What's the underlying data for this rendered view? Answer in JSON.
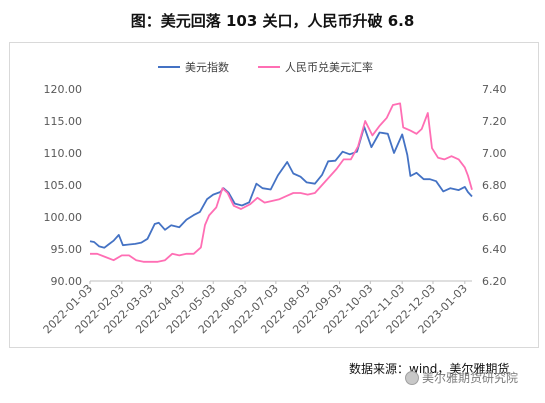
{
  "title": "图：美元回落 103 关口，人民币升破 6.8",
  "source": "数据来源：wind，美尔雅期货",
  "watermark": "美尔雅期货研究院",
  "chart_data": {
    "type": "line",
    "title": "图：美元回落 103 关口，人民币升破 6.8",
    "legend_position": "top-center",
    "grid": false,
    "x_ticks": [
      "2022-01-03",
      "2022-02-03",
      "2022-03-03",
      "2022-04-03",
      "2022-05-03",
      "2022-06-03",
      "2022-07-03",
      "2022-08-03",
      "2022-09-03",
      "2022-10-03",
      "2022-11-03",
      "2022-12-03",
      "2023-01-03"
    ],
    "x_range": [
      "2022-01-03",
      "2023-01-10"
    ],
    "y_left": {
      "ticks": [
        "90.00",
        "95.00",
        "100.00",
        "105.00",
        "110.00",
        "115.00",
        "120.00"
      ],
      "range": [
        90,
        120
      ]
    },
    "y_right": {
      "ticks": [
        "6.20",
        "6.40",
        "6.60",
        "6.80",
        "7.00",
        "7.20",
        "7.40"
      ],
      "range": [
        6.2,
        7.4
      ]
    },
    "series": [
      {
        "name": "美元指数",
        "axis": "left",
        "color": "#4472c4",
        "points": [
          [
            "2022-01-03",
            96.2
          ],
          [
            "2022-01-07",
            96.1
          ],
          [
            "2022-01-12",
            95.4
          ],
          [
            "2022-01-17",
            95.2
          ],
          [
            "2022-01-21",
            95.7
          ],
          [
            "2022-01-26",
            96.3
          ],
          [
            "2022-01-31",
            97.2
          ],
          [
            "2022-02-04",
            95.6
          ],
          [
            "2022-02-10",
            95.7
          ],
          [
            "2022-02-16",
            95.8
          ],
          [
            "2022-02-22",
            96.0
          ],
          [
            "2022-02-28",
            96.6
          ],
          [
            "2022-03-07",
            98.9
          ],
          [
            "2022-03-11",
            99.1
          ],
          [
            "2022-03-17",
            98.0
          ],
          [
            "2022-03-23",
            98.7
          ],
          [
            "2022-03-31",
            98.4
          ],
          [
            "2022-04-07",
            99.6
          ],
          [
            "2022-04-14",
            100.3
          ],
          [
            "2022-04-20",
            100.8
          ],
          [
            "2022-04-27",
            102.8
          ],
          [
            "2022-05-03",
            103.5
          ],
          [
            "2022-05-10",
            103.9
          ],
          [
            "2022-05-13",
            104.5
          ],
          [
            "2022-05-18",
            103.8
          ],
          [
            "2022-05-24",
            102.1
          ],
          [
            "2022-05-31",
            101.8
          ],
          [
            "2022-06-07",
            102.3
          ],
          [
            "2022-06-14",
            105.2
          ],
          [
            "2022-06-20",
            104.5
          ],
          [
            "2022-06-28",
            104.3
          ],
          [
            "2022-07-05",
            106.5
          ],
          [
            "2022-07-14",
            108.6
          ],
          [
            "2022-07-20",
            106.8
          ],
          [
            "2022-07-27",
            106.3
          ],
          [
            "2022-08-02",
            105.4
          ],
          [
            "2022-08-10",
            105.2
          ],
          [
            "2022-08-17",
            106.6
          ],
          [
            "2022-08-23",
            108.7
          ],
          [
            "2022-08-30",
            108.8
          ],
          [
            "2022-09-06",
            110.2
          ],
          [
            "2022-09-13",
            109.8
          ],
          [
            "2022-09-20",
            110.2
          ],
          [
            "2022-09-27",
            114.1
          ],
          [
            "2022-10-04",
            110.9
          ],
          [
            "2022-10-12",
            113.2
          ],
          [
            "2022-10-20",
            113.0
          ],
          [
            "2022-10-26",
            110.0
          ],
          [
            "2022-11-03",
            112.9
          ],
          [
            "2022-11-08",
            109.7
          ],
          [
            "2022-11-11",
            106.4
          ],
          [
            "2022-11-17",
            106.9
          ],
          [
            "2022-11-24",
            105.9
          ],
          [
            "2022-11-30",
            105.9
          ],
          [
            "2022-12-06",
            105.6
          ],
          [
            "2022-12-13",
            104.0
          ],
          [
            "2022-12-20",
            104.5
          ],
          [
            "2022-12-28",
            104.2
          ],
          [
            "2023-01-03",
            104.7
          ],
          [
            "2023-01-06",
            103.9
          ],
          [
            "2023-01-10",
            103.2
          ]
        ]
      },
      {
        "name": "人民币兑美元汇率",
        "axis": "right",
        "color": "#ff6eb4",
        "points": [
          [
            "2022-01-03",
            6.37
          ],
          [
            "2022-01-10",
            6.37
          ],
          [
            "2022-01-18",
            6.35
          ],
          [
            "2022-01-26",
            6.33
          ],
          [
            "2022-02-03",
            6.36
          ],
          [
            "2022-02-10",
            6.36
          ],
          [
            "2022-02-17",
            6.33
          ],
          [
            "2022-02-24",
            6.32
          ],
          [
            "2022-03-03",
            6.32
          ],
          [
            "2022-03-10",
            6.32
          ],
          [
            "2022-03-17",
            6.33
          ],
          [
            "2022-03-24",
            6.37
          ],
          [
            "2022-03-31",
            6.36
          ],
          [
            "2022-04-07",
            6.37
          ],
          [
            "2022-04-14",
            6.37
          ],
          [
            "2022-04-21",
            6.41
          ],
          [
            "2022-04-25",
            6.55
          ],
          [
            "2022-04-29",
            6.61
          ],
          [
            "2022-05-06",
            6.66
          ],
          [
            "2022-05-12",
            6.78
          ],
          [
            "2022-05-17",
            6.75
          ],
          [
            "2022-05-23",
            6.67
          ],
          [
            "2022-05-30",
            6.65
          ],
          [
            "2022-06-08",
            6.68
          ],
          [
            "2022-06-15",
            6.72
          ],
          [
            "2022-06-22",
            6.69
          ],
          [
            "2022-06-29",
            6.7
          ],
          [
            "2022-07-06",
            6.71
          ],
          [
            "2022-07-13",
            6.73
          ],
          [
            "2022-07-20",
            6.75
          ],
          [
            "2022-07-27",
            6.75
          ],
          [
            "2022-08-03",
            6.74
          ],
          [
            "2022-08-10",
            6.75
          ],
          [
            "2022-08-17",
            6.8
          ],
          [
            "2022-08-24",
            6.85
          ],
          [
            "2022-08-31",
            6.9
          ],
          [
            "2022-09-07",
            6.96
          ],
          [
            "2022-09-14",
            6.96
          ],
          [
            "2022-09-21",
            7.04
          ],
          [
            "2022-09-28",
            7.2
          ],
          [
            "2022-10-05",
            7.11
          ],
          [
            "2022-10-12",
            7.17
          ],
          [
            "2022-10-19",
            7.22
          ],
          [
            "2022-10-25",
            7.3
          ],
          [
            "2022-11-01",
            7.31
          ],
          [
            "2022-11-04",
            7.16
          ],
          [
            "2022-11-11",
            7.14
          ],
          [
            "2022-11-17",
            7.12
          ],
          [
            "2022-11-22",
            7.15
          ],
          [
            "2022-11-28",
            7.25
          ],
          [
            "2022-12-02",
            7.03
          ],
          [
            "2022-12-08",
            6.97
          ],
          [
            "2022-12-14",
            6.96
          ],
          [
            "2022-12-21",
            6.98
          ],
          [
            "2022-12-28",
            6.96
          ],
          [
            "2023-01-03",
            6.91
          ],
          [
            "2023-01-06",
            6.86
          ],
          [
            "2023-01-10",
            6.77
          ]
        ]
      }
    ]
  }
}
